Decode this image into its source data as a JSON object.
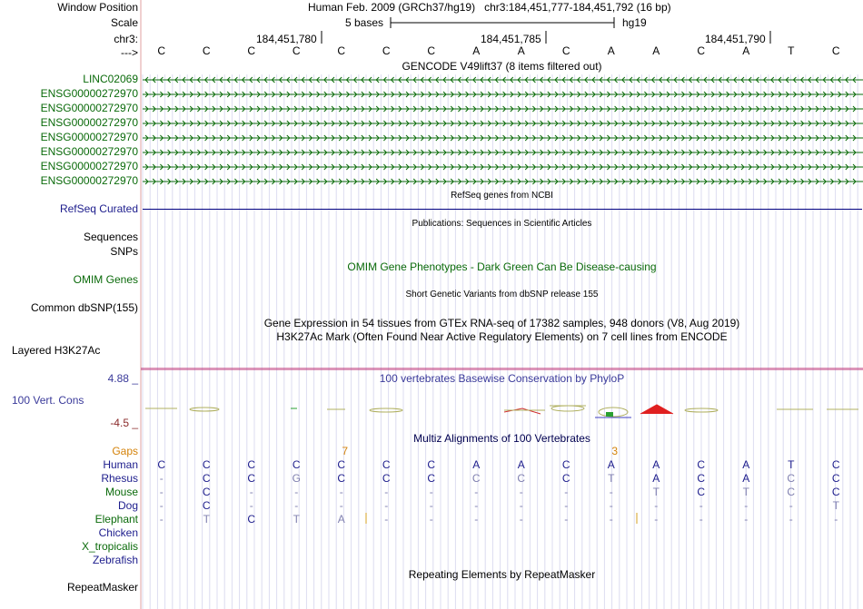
{
  "header": {
    "window_position_label": "Window Position",
    "scale_label": "Scale",
    "chrom_label": "chr3:",
    "arrow_label": "--->",
    "assembly": "Human Feb. 2009 (GRCh37/hg19)",
    "position": "chr3:184,451,777-184,451,792 (16 bp)",
    "scale_text": "5 bases",
    "db": "hg19",
    "ticks": [
      "184,451,780",
      "184,451,785",
      "184,451,790"
    ]
  },
  "sequence": [
    "C",
    "C",
    "C",
    "C",
    "C",
    "C",
    "C",
    "A",
    "A",
    "C",
    "A",
    "A",
    "C",
    "A",
    "T",
    "C"
  ],
  "gencode": {
    "title": "GENCODE V49lift37 (8 items filtered out)",
    "tracks": [
      {
        "name": "LINC02069",
        "strand": "-"
      },
      {
        "name": "ENSG00000272970",
        "strand": "+"
      },
      {
        "name": "ENSG00000272970",
        "strand": "+"
      },
      {
        "name": "ENSG00000272970",
        "strand": "+"
      },
      {
        "name": "ENSG00000272970",
        "strand": "+"
      },
      {
        "name": "ENSG00000272970",
        "strand": "+"
      },
      {
        "name": "ENSG00000272970",
        "strand": "+"
      },
      {
        "name": "ENSG00000272970",
        "strand": "+"
      }
    ]
  },
  "refseq": {
    "title": "RefSeq genes from NCBI",
    "label": "RefSeq Curated"
  },
  "publications": {
    "title": "Publications: Sequences in Scientific Articles",
    "label_sequences": "Sequences",
    "label_snps": "SNPs"
  },
  "omim": {
    "title": "OMIM Gene Phenotypes - Dark Green Can Be Disease-causing",
    "label": "OMIM Genes"
  },
  "dbsnp": {
    "title": "Short Genetic Variants from dbSNP release 155",
    "label": "Common dbSNP(155)"
  },
  "gtex": {
    "title": "Gene Expression in 54 tissues from GTEx RNA-seq of 17382 samples, 948 donors (V8, Aug 2019)"
  },
  "h3k27ac": {
    "title": "H3K27Ac Mark (Often Found Near Active Regulatory Elements) on 7 cell lines from ENCODE",
    "label": "Layered H3K27Ac"
  },
  "phylop": {
    "title": "100 vertebrates Basewise Conservation by PhyloP",
    "label": "100 Vert. Cons",
    "max": "4.88 _",
    "min": "-4.5 _"
  },
  "multiz": {
    "title": "Multiz Alignments of 100 Vertebrates",
    "gaps_label": "Gaps",
    "gap_markers": [
      {
        "col": 4.5,
        "text": "7"
      },
      {
        "col": 10.5,
        "text": "3"
      }
    ],
    "species": [
      {
        "name": "Human",
        "bases": [
          "C",
          "C",
          "C",
          "C",
          "C",
          "C",
          "C",
          "A",
          "A",
          "C",
          "A",
          "A",
          "C",
          "A",
          "T",
          "C"
        ]
      },
      {
        "name": "Rhesus",
        "bases": [
          "-",
          "C",
          "C",
          "G",
          "C",
          "C",
          "C",
          "C",
          "C",
          "C",
          "T",
          "A",
          "C",
          "A",
          "C",
          "C"
        ]
      },
      {
        "name": "Mouse",
        "bases": [
          "-",
          "C",
          "-",
          "-",
          "-",
          "-",
          "-",
          "-",
          "-",
          "-",
          "-",
          "T",
          "C",
          "T",
          "C",
          "C"
        ]
      },
      {
        "name": "Dog",
        "bases": [
          "-",
          "C",
          "-",
          "-",
          "-",
          "-",
          "-",
          "-",
          "-",
          "-",
          "-",
          "-",
          "-",
          "-",
          "-",
          "T"
        ]
      },
      {
        "name": "Elephant",
        "bases": [
          "-",
          "T",
          "C",
          "T",
          "A",
          "-",
          "-",
          "-",
          "-",
          "-",
          "-",
          "-",
          "-",
          "-",
          "-",
          "-"
        ]
      },
      {
        "name": "Chicken",
        "bases": []
      },
      {
        "name": "X_tropicalis",
        "bases": []
      },
      {
        "name": "Zebrafish",
        "bases": []
      }
    ]
  },
  "repeatmasker": {
    "title": "Repeating Elements by RepeatMasker",
    "label": "RepeatMasker"
  },
  "colors": {
    "gene_green": "#0a6a0a",
    "navy": "#1c1c8c",
    "orange": "#d4820a",
    "separator": "#c04080"
  }
}
